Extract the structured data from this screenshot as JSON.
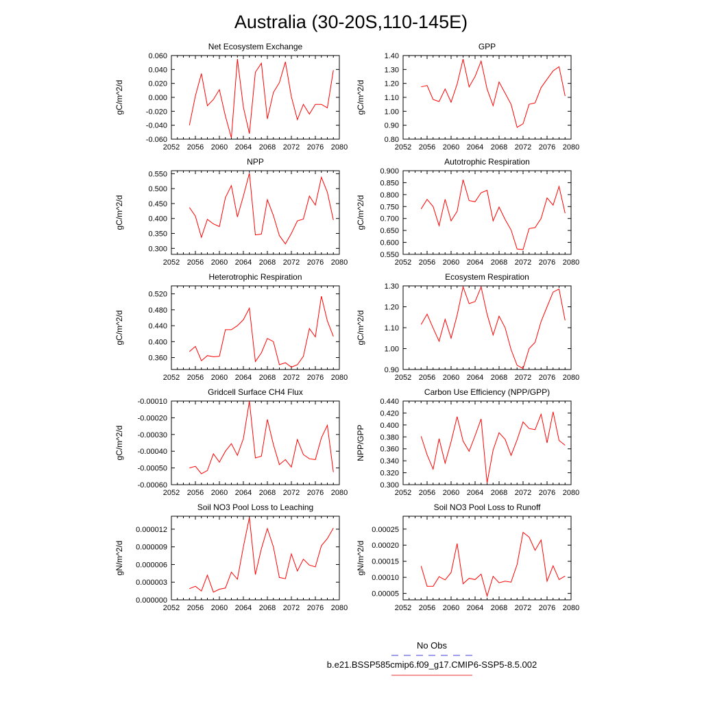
{
  "figure": {
    "title": "Australia (30-20S,110-145E)",
    "legend": [
      {
        "label": "No Obs",
        "color": "#3b3bd9",
        "style": "dashed"
      },
      {
        "label": "b.e21.BSSP585cmip6.f09_g17.CMIP6-SSP5-8.5.002",
        "color": "#e8312f",
        "style": "solid"
      }
    ],
    "line_color": "#ff0000"
  },
  "chart_data": [
    {
      "type": "line",
      "title": "Net Ecosystem Exchange",
      "ylabel": "gC/m^2/d",
      "xlim": [
        2052,
        2080
      ],
      "xticks": [
        "2052",
        "2056",
        "2060",
        "2064",
        "2068",
        "2072",
        "2076",
        "2080"
      ],
      "ylim": [
        -0.06,
        0.06
      ],
      "yticks": [
        "0.060",
        "0.040",
        "0.020",
        "0.000",
        "-0.020",
        "-0.040",
        "-0.060"
      ],
      "x": [
        2055,
        2056,
        2057,
        2058,
        2059,
        2060,
        2061,
        2062,
        2063,
        2064,
        2065,
        2066,
        2067,
        2068,
        2069,
        2070,
        2071,
        2072,
        2073,
        2074,
        2075,
        2076,
        2077,
        2078,
        2079
      ],
      "series": [
        {
          "values": [
            -0.04,
            0.002,
            0.034,
            -0.012,
            -0.003,
            0.011,
            -0.027,
            -0.058,
            0.055,
            -0.014,
            -0.052,
            0.036,
            0.049,
            -0.031,
            0.007,
            0.021,
            0.051,
            0.001,
            -0.032,
            -0.01,
            -0.024,
            -0.01,
            -0.01,
            -0.015,
            0.039
          ]
        }
      ]
    },
    {
      "type": "line",
      "title": "GPP",
      "ylabel": "gC/m^2/d",
      "xlim": [
        2052,
        2080
      ],
      "xticks": [
        "2052",
        "2056",
        "2060",
        "2064",
        "2068",
        "2072",
        "2076",
        "2080"
      ],
      "ylim": [
        0.8,
        1.4
      ],
      "yticks": [
        "1.40",
        "1.30",
        "1.20",
        "1.10",
        "1.00",
        "0.90",
        "0.80"
      ],
      "x": [
        2055,
        2056,
        2057,
        2058,
        2059,
        2060,
        2061,
        2062,
        2063,
        2064,
        2065,
        2066,
        2067,
        2068,
        2069,
        2070,
        2071,
        2072,
        2073,
        2074,
        2075,
        2076,
        2077,
        2078,
        2079
      ],
      "series": [
        {
          "values": [
            1.175,
            1.185,
            1.085,
            1.07,
            1.16,
            1.065,
            1.195,
            1.375,
            1.175,
            1.25,
            1.36,
            1.16,
            1.04,
            1.21,
            1.13,
            1.05,
            0.885,
            0.91,
            1.05,
            1.06,
            1.17,
            1.23,
            1.29,
            1.32,
            1.11
          ]
        }
      ]
    },
    {
      "type": "line",
      "title": "NPP",
      "ylabel": "gC/m^2/d",
      "xlim": [
        2052,
        2080
      ],
      "xticks": [
        "2052",
        "2056",
        "2060",
        "2064",
        "2068",
        "2072",
        "2076",
        "2080"
      ],
      "ylim": [
        0.28,
        0.56
      ],
      "yticks": [
        "0.550",
        "0.500",
        "0.450",
        "0.400",
        "0.350",
        "0.300"
      ],
      "x": [
        2055,
        2056,
        2057,
        2058,
        2059,
        2060,
        2061,
        2062,
        2063,
        2064,
        2065,
        2066,
        2067,
        2068,
        2069,
        2070,
        2071,
        2072,
        2073,
        2074,
        2075,
        2076,
        2077,
        2078,
        2079
      ],
      "series": [
        {
          "values": [
            0.437,
            0.408,
            0.337,
            0.397,
            0.382,
            0.373,
            0.47,
            0.51,
            0.405,
            0.475,
            0.552,
            0.345,
            0.348,
            0.463,
            0.41,
            0.343,
            0.315,
            0.35,
            0.392,
            0.398,
            0.475,
            0.445,
            0.538,
            0.488,
            0.395
          ]
        }
      ]
    },
    {
      "type": "line",
      "title": "Autotrophic Respiration",
      "ylabel": "gC/m^2/d",
      "xlim": [
        2052,
        2080
      ],
      "xticks": [
        "2052",
        "2056",
        "2060",
        "2064",
        "2068",
        "2072",
        "2076",
        "2080"
      ],
      "ylim": [
        0.55,
        0.9
      ],
      "yticks": [
        "0.900",
        "0.850",
        "0.800",
        "0.750",
        "0.700",
        "0.650",
        "0.600",
        "0.550"
      ],
      "x": [
        2055,
        2056,
        2057,
        2058,
        2059,
        2060,
        2061,
        2062,
        2063,
        2064,
        2065,
        2066,
        2067,
        2068,
        2069,
        2070,
        2071,
        2072,
        2073,
        2074,
        2075,
        2076,
        2077,
        2078,
        2079
      ],
      "series": [
        {
          "values": [
            0.74,
            0.78,
            0.75,
            0.67,
            0.78,
            0.69,
            0.73,
            0.862,
            0.775,
            0.77,
            0.808,
            0.818,
            0.69,
            0.748,
            0.696,
            0.652,
            0.572,
            0.57,
            0.658,
            0.662,
            0.7,
            0.786,
            0.756,
            0.834,
            0.722
          ]
        }
      ]
    },
    {
      "type": "line",
      "title": "Heterotrophic Respiration",
      "ylabel": "gC/m^2/d",
      "xlim": [
        2052,
        2080
      ],
      "xticks": [
        "2052",
        "2056",
        "2060",
        "2064",
        "2068",
        "2072",
        "2076",
        "2080"
      ],
      "ylim": [
        0.33,
        0.54
      ],
      "yticks": [
        "0.520",
        "0.480",
        "0.440",
        "0.400",
        "0.360"
      ],
      "x": [
        2055,
        2056,
        2057,
        2058,
        2059,
        2060,
        2061,
        2062,
        2063,
        2064,
        2065,
        2066,
        2067,
        2068,
        2069,
        2070,
        2071,
        2072,
        2073,
        2074,
        2075,
        2076,
        2077,
        2078,
        2079
      ],
      "series": [
        {
          "values": [
            0.375,
            0.388,
            0.352,
            0.365,
            0.362,
            0.363,
            0.43,
            0.43,
            0.44,
            0.455,
            0.484,
            0.35,
            0.372,
            0.408,
            0.4,
            0.342,
            0.347,
            0.336,
            0.342,
            0.363,
            0.433,
            0.412,
            0.514,
            0.452,
            0.413
          ]
        }
      ]
    },
    {
      "type": "line",
      "title": "Ecosystem Respiration",
      "ylabel": "gC/m^2/d",
      "xlim": [
        2052,
        2080
      ],
      "xticks": [
        "2052",
        "2056",
        "2060",
        "2064",
        "2068",
        "2072",
        "2076",
        "2080"
      ],
      "ylim": [
        0.9,
        1.3
      ],
      "yticks": [
        "1.30",
        "1.20",
        "1.10",
        "1.00",
        "0.90"
      ],
      "x": [
        2055,
        2056,
        2057,
        2058,
        2059,
        2060,
        2061,
        2062,
        2063,
        2064,
        2065,
        2066,
        2067,
        2068,
        2069,
        2070,
        2071,
        2072,
        2073,
        2074,
        2075,
        2076,
        2077,
        2078,
        2079
      ],
      "series": [
        {
          "values": [
            1.115,
            1.165,
            1.098,
            1.035,
            1.14,
            1.05,
            1.16,
            1.295,
            1.215,
            1.225,
            1.295,
            1.165,
            1.065,
            1.155,
            1.1,
            0.995,
            0.92,
            0.905,
            1.0,
            1.03,
            1.13,
            1.2,
            1.27,
            1.285,
            1.135
          ]
        }
      ]
    },
    {
      "type": "line",
      "title": "Gridcell Surface CH4 Flux",
      "ylabel": "gC/m^2/d",
      "xlim": [
        2052,
        2080
      ],
      "xticks": [
        "2052",
        "2056",
        "2060",
        "2064",
        "2068",
        "2072",
        "2076",
        "2080"
      ],
      "ylim": [
        -0.0006,
        -0.0001
      ],
      "yticks": [
        "-0.00010",
        "-0.00020",
        "-0.00030",
        "-0.00040",
        "-0.00050",
        "-0.00060"
      ],
      "x": [
        2055,
        2056,
        2057,
        2058,
        2059,
        2060,
        2061,
        2062,
        2063,
        2064,
        2065,
        2066,
        2067,
        2068,
        2069,
        2070,
        2071,
        2072,
        2073,
        2074,
        2075,
        2076,
        2077,
        2078,
        2079
      ],
      "series": [
        {
          "values": [
            -0.0005,
            -0.00049,
            -0.000535,
            -0.000515,
            -0.000415,
            -0.000465,
            -0.0004,
            -0.000355,
            -0.000425,
            -0.000325,
            -0.0001,
            -0.00044,
            -0.00043,
            -0.00021,
            -0.00036,
            -0.00048,
            -0.00045,
            -0.000495,
            -0.00033,
            -0.00042,
            -0.000445,
            -0.00045,
            -0.00032,
            -0.000245,
            -0.000525
          ]
        }
      ]
    },
    {
      "type": "line",
      "title": "Carbon Use Efficiency (NPP/GPP)",
      "ylabel": "NPP/GPP",
      "xlim": [
        2052,
        2080
      ],
      "xticks": [
        "2052",
        "2056",
        "2060",
        "2064",
        "2068",
        "2072",
        "2076",
        "2080"
      ],
      "ylim": [
        0.3,
        0.44
      ],
      "yticks": [
        "0.440",
        "0.420",
        "0.400",
        "0.380",
        "0.360",
        "0.340",
        "0.320",
        "0.300"
      ],
      "x": [
        2055,
        2056,
        2057,
        2058,
        2059,
        2060,
        2061,
        2062,
        2063,
        2064,
        2065,
        2066,
        2067,
        2068,
        2069,
        2070,
        2071,
        2072,
        2073,
        2074,
        2075,
        2076,
        2077,
        2078,
        2079
      ],
      "series": [
        {
          "values": [
            0.381,
            0.35,
            0.326,
            0.377,
            0.336,
            0.372,
            0.414,
            0.373,
            0.356,
            0.382,
            0.41,
            0.303,
            0.358,
            0.387,
            0.376,
            0.349,
            0.375,
            0.405,
            0.394,
            0.392,
            0.418,
            0.37,
            0.422,
            0.374,
            0.366
          ]
        }
      ]
    },
    {
      "type": "line",
      "title": "Soil NO3 Pool Loss to Leaching",
      "ylabel": "gN/m^2/d",
      "xlim": [
        2052,
        2080
      ],
      "xticks": [
        "2052",
        "2056",
        "2060",
        "2064",
        "2068",
        "2072",
        "2076",
        "2080"
      ],
      "ylim": [
        0,
        1.42e-05
      ],
      "yticks": [
        "0.000012",
        "0.000009",
        "0.000006",
        "0.000003",
        "0.000000"
      ],
      "x": [
        2055,
        2056,
        2057,
        2058,
        2059,
        2060,
        2061,
        2062,
        2063,
        2064,
        2065,
        2066,
        2067,
        2068,
        2069,
        2070,
        2071,
        2072,
        2073,
        2074,
        2075,
        2076,
        2077,
        2078,
        2079
      ],
      "series": [
        {
          "values": [
            1.9e-06,
            2.3e-06,
            1.5e-06,
            4.2e-06,
            1.3e-06,
            1.8e-06,
            2e-06,
            4.7e-06,
            3.5e-06,
            9e-06,
            1.4e-05,
            4.3e-06,
            8.7e-06,
            1.21e-05,
            9e-06,
            3.8e-06,
            3.6e-06,
            7.8e-06,
            4.9e-06,
            6.9e-06,
            5.9e-06,
            5.6e-06,
            9.2e-06,
            1.04e-05,
            1.22e-05
          ]
        }
      ]
    },
    {
      "type": "line",
      "title": "Soil NO3 Pool Loss to Runoff",
      "ylabel": "gN/m^2/d",
      "xlim": [
        2052,
        2080
      ],
      "xticks": [
        "2052",
        "2056",
        "2060",
        "2064",
        "2068",
        "2072",
        "2076",
        "2080"
      ],
      "ylim": [
        3e-05,
        0.00029
      ],
      "yticks": [
        "0.00025",
        "0.00020",
        "0.00015",
        "0.00010",
        "0.00005"
      ],
      "x": [
        2055,
        2056,
        2057,
        2058,
        2059,
        2060,
        2061,
        2062,
        2063,
        2064,
        2065,
        2066,
        2067,
        2068,
        2069,
        2070,
        2071,
        2072,
        2073,
        2074,
        2075,
        2076,
        2077,
        2078,
        2079
      ],
      "series": [
        {
          "values": [
            0.000135,
            7.2e-05,
            7.2e-05,
            0.000102,
            9.2e-05,
            0.000115,
            0.000205,
            8e-05,
            9.7e-05,
            9.3e-05,
            0.00011,
            4.2e-05,
            0.000103,
            8.3e-05,
            8.8e-05,
            8.5e-05,
            0.00014,
            0.00024,
            0.000225,
            0.000184,
            0.000216,
            8.8e-05,
            0.000136,
            9.3e-05,
            0.000104
          ]
        }
      ]
    }
  ]
}
